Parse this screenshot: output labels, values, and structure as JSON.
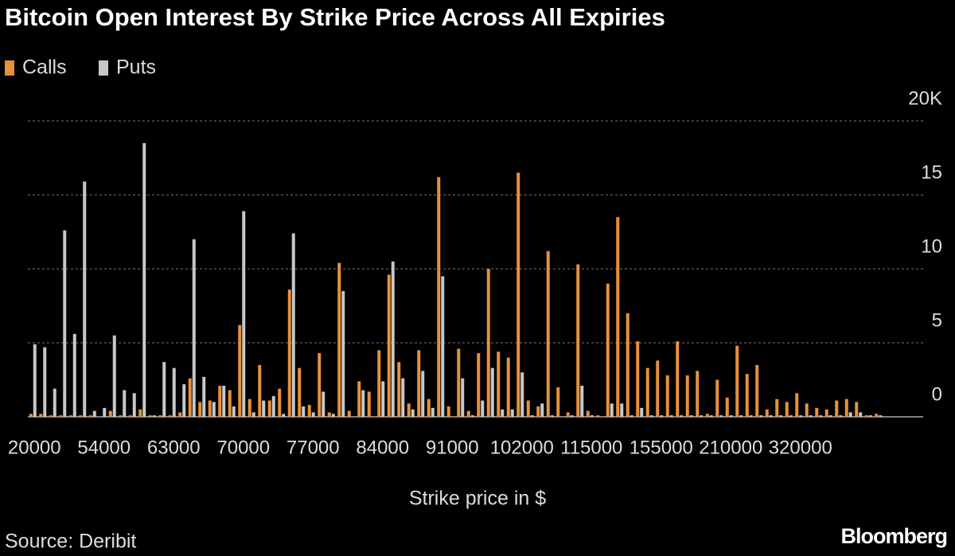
{
  "chart_data": {
    "type": "bar",
    "title": "Bitcoin Open Interest By Strike Price Across All Expiries",
    "x_label": "Strike price in $",
    "source": "Source: Deribit",
    "logo": "Bloomberg",
    "categories": [
      "20000",
      null,
      null,
      null,
      null,
      null,
      null,
      "54000",
      null,
      null,
      null,
      null,
      null,
      null,
      "63000",
      null,
      null,
      null,
      null,
      null,
      null,
      "70000",
      null,
      null,
      null,
      null,
      null,
      null,
      "77000",
      null,
      null,
      null,
      null,
      null,
      null,
      "84000",
      null,
      null,
      null,
      null,
      null,
      null,
      "91000",
      null,
      null,
      null,
      null,
      null,
      null,
      "102000",
      null,
      null,
      null,
      null,
      null,
      null,
      "115000",
      null,
      null,
      null,
      null,
      null,
      null,
      "155000",
      null,
      null,
      null,
      null,
      null,
      null,
      "210000",
      null,
      null,
      null,
      null,
      null,
      null,
      "320000",
      null,
      null,
      null,
      null,
      null,
      null,
      null,
      null
    ],
    "series": [
      {
        "name": "Calls",
        "color": "#e8913a",
        "values": [
          0.2,
          0.2,
          0.1,
          0.1,
          0.1,
          0.1,
          0.1,
          0,
          0.4,
          0.1,
          0.1,
          0.5,
          0.1,
          0.1,
          0.1,
          0.3,
          2.6,
          1.0,
          1.1,
          2.1,
          1.8,
          6.2,
          1.2,
          3.5,
          1.1,
          1.9,
          8.6,
          3.3,
          0.8,
          4.3,
          0.3,
          10.4,
          0.4,
          2.4,
          1.7,
          4.5,
          9.6,
          3.7,
          0.9,
          4.5,
          1.2,
          16.2,
          0.7,
          4.6,
          0.4,
          4.3,
          10.0,
          4.4,
          4.0,
          16.5,
          1.1,
          0.7,
          11.2,
          2.0,
          0.3,
          10.3,
          0.4,
          0.1,
          9.0,
          13.5,
          7.0,
          5.1,
          3.3,
          3.8,
          2.8,
          5.1,
          2.8,
          3.1,
          0.2,
          2.5,
          1.3,
          4.8,
          2.9,
          3.5,
          0.5,
          1.2,
          1.0,
          1.6,
          0.9,
          0.6,
          0.5,
          1.1,
          1.2,
          1.0,
          0.1,
          0.2
        ]
      },
      {
        "name": "Puts",
        "color": "#c8c8c8",
        "values": [
          4.9,
          4.7,
          1.9,
          12.6,
          5.6,
          15.9,
          0.4,
          0.6,
          5.5,
          1.8,
          1.6,
          18.5,
          0.1,
          3.7,
          3.3,
          2.2,
          12.0,
          2.7,
          1.0,
          2.1,
          0.7,
          13.9,
          0.3,
          1.1,
          1.4,
          0.2,
          12.4,
          0.7,
          0.3,
          1.7,
          0.2,
          8.5,
          0,
          1.8,
          0,
          2.4,
          10.5,
          2.6,
          0.5,
          3.1,
          0.6,
          9.5,
          0,
          2.6,
          0.1,
          1.1,
          3.3,
          0.5,
          0.5,
          3.0,
          0.1,
          0.9,
          0.1,
          0,
          0.1,
          2.1,
          0.1,
          0,
          0.9,
          0.9,
          0.1,
          0.6,
          0.1,
          0.1,
          0.1,
          0.1,
          0.1,
          0.1,
          0.1,
          0.1,
          0.1,
          0.1,
          0.1,
          0.1,
          0.1,
          0.1,
          0.1,
          0.1,
          0.1,
          0.1,
          0.1,
          0.1,
          0.3,
          0.3,
          0.1,
          0.1
        ]
      }
    ],
    "ylim": [
      0,
      20
    ],
    "yticks": [
      0,
      5,
      10,
      15,
      {
        "value": 20,
        "label": "20K"
      }
    ],
    "grid": true
  }
}
